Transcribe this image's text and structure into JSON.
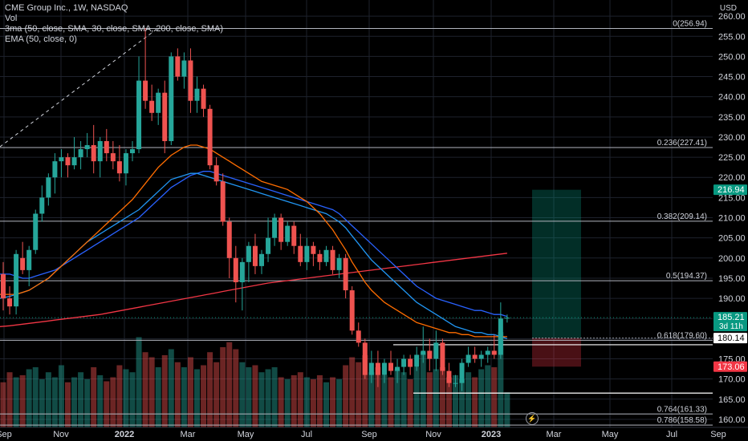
{
  "legend": {
    "symbol": "CME Group Inc., 1W, NASDAQ",
    "vol": "Vol",
    "ma": "3ma (50, close, SMA, 30, close, SMA, 200, close, SMA)",
    "ema": "EMA (50, close, 0)"
  },
  "currency": "USD",
  "colors": {
    "up": "#26a69a",
    "down": "#ef5350",
    "sma50": "#2962ff",
    "sma30": "#2196f3",
    "sma200": "#f23645",
    "ema50": "#ff6d00",
    "grid": "#1e222d",
    "text": "#d1d4dc"
  },
  "chart_data": {
    "type": "candlestick",
    "ylim": [
      158,
      264
    ],
    "y_ticks": [
      160,
      165,
      170,
      175,
      180,
      185,
      190,
      195,
      200,
      205,
      210,
      215,
      220,
      225,
      230,
      235,
      240,
      245,
      250,
      255,
      260
    ],
    "x_ticks": [
      "Sep",
      "Nov",
      "2022",
      "Mar",
      "May",
      "Jul",
      "Sep",
      "Nov",
      "2023",
      "Mar",
      "May",
      "Jul",
      "Sep"
    ],
    "candles": [
      {
        "o": 196,
        "h": 199,
        "l": 187,
        "c": 190
      },
      {
        "o": 190,
        "h": 193,
        "l": 186,
        "c": 188
      },
      {
        "o": 188,
        "h": 202,
        "l": 186,
        "c": 201
      },
      {
        "o": 200,
        "h": 204,
        "l": 196,
        "c": 197
      },
      {
        "o": 197,
        "h": 203,
        "l": 193,
        "c": 202
      },
      {
        "o": 202,
        "h": 212,
        "l": 201,
        "c": 211
      },
      {
        "o": 211,
        "h": 218,
        "l": 209,
        "c": 215
      },
      {
        "o": 215,
        "h": 221,
        "l": 213,
        "c": 220
      },
      {
        "o": 220,
        "h": 226,
        "l": 216,
        "c": 224
      },
      {
        "o": 224,
        "h": 227,
        "l": 220,
        "c": 225
      },
      {
        "o": 225,
        "h": 226,
        "l": 220,
        "c": 223
      },
      {
        "o": 223,
        "h": 230,
        "l": 222,
        "c": 225
      },
      {
        "o": 225,
        "h": 229,
        "l": 222,
        "c": 227
      },
      {
        "o": 227,
        "h": 231,
        "l": 225,
        "c": 228
      },
      {
        "o": 228,
        "h": 233,
        "l": 221,
        "c": 224
      },
      {
        "o": 224,
        "h": 230,
        "l": 220,
        "c": 229
      },
      {
        "o": 229,
        "h": 232,
        "l": 224,
        "c": 226
      },
      {
        "o": 226,
        "h": 229,
        "l": 222,
        "c": 224
      },
      {
        "o": 224,
        "h": 228,
        "l": 219,
        "c": 221
      },
      {
        "o": 221,
        "h": 227,
        "l": 218,
        "c": 226
      },
      {
        "o": 226,
        "h": 229,
        "l": 224,
        "c": 227
      },
      {
        "o": 227,
        "h": 250,
        "l": 226,
        "c": 244
      },
      {
        "o": 244,
        "h": 257,
        "l": 237,
        "c": 239
      },
      {
        "o": 239,
        "h": 243,
        "l": 234,
        "c": 236
      },
      {
        "o": 236,
        "h": 242,
        "l": 233,
        "c": 241
      },
      {
        "o": 241,
        "h": 244,
        "l": 226,
        "c": 229
      },
      {
        "o": 229,
        "h": 251,
        "l": 228,
        "c": 250
      },
      {
        "o": 250,
        "h": 252,
        "l": 244,
        "c": 245
      },
      {
        "o": 245,
        "h": 251,
        "l": 242,
        "c": 249
      },
      {
        "o": 249,
        "h": 252,
        "l": 236,
        "c": 239
      },
      {
        "o": 239,
        "h": 245,
        "l": 236,
        "c": 242
      },
      {
        "o": 242,
        "h": 243,
        "l": 235,
        "c": 237
      },
      {
        "o": 237,
        "h": 238,
        "l": 222,
        "c": 223
      },
      {
        "o": 223,
        "h": 225,
        "l": 218,
        "c": 219
      },
      {
        "o": 219,
        "h": 221,
        "l": 208,
        "c": 209
      },
      {
        "o": 209,
        "h": 210,
        "l": 195,
        "c": 200
      },
      {
        "o": 200,
        "h": 203,
        "l": 189,
        "c": 194
      },
      {
        "o": 194,
        "h": 200,
        "l": 187,
        "c": 199
      },
      {
        "o": 199,
        "h": 204,
        "l": 194,
        "c": 203
      },
      {
        "o": 203,
        "h": 206,
        "l": 196,
        "c": 198
      },
      {
        "o": 198,
        "h": 202,
        "l": 196,
        "c": 201
      },
      {
        "o": 201,
        "h": 210,
        "l": 199,
        "c": 205
      },
      {
        "o": 205,
        "h": 211,
        "l": 203,
        "c": 210
      },
      {
        "o": 210,
        "h": 211,
        "l": 202,
        "c": 204
      },
      {
        "o": 204,
        "h": 209,
        "l": 203,
        "c": 208
      },
      {
        "o": 208,
        "h": 209,
        "l": 201,
        "c": 203
      },
      {
        "o": 203,
        "h": 206,
        "l": 198,
        "c": 199
      },
      {
        "o": 199,
        "h": 205,
        "l": 197,
        "c": 203
      },
      {
        "o": 203,
        "h": 204,
        "l": 198,
        "c": 201
      },
      {
        "o": 201,
        "h": 202,
        "l": 197,
        "c": 199
      },
      {
        "o": 199,
        "h": 203,
        "l": 198,
        "c": 202
      },
      {
        "o": 202,
        "h": 203,
        "l": 196,
        "c": 197
      },
      {
        "o": 197,
        "h": 201,
        "l": 195,
        "c": 200
      },
      {
        "o": 200,
        "h": 201,
        "l": 190,
        "c": 192
      },
      {
        "o": 192,
        "h": 193,
        "l": 181,
        "c": 182
      },
      {
        "o": 182,
        "h": 184,
        "l": 178,
        "c": 179
      },
      {
        "o": 179,
        "h": 180,
        "l": 170,
        "c": 171
      },
      {
        "o": 171,
        "h": 177,
        "l": 169,
        "c": 174
      },
      {
        "o": 174,
        "h": 177,
        "l": 168,
        "c": 171
      },
      {
        "o": 171,
        "h": 175,
        "l": 169,
        "c": 174
      },
      {
        "o": 174,
        "h": 177,
        "l": 171,
        "c": 172
      },
      {
        "o": 172,
        "h": 175,
        "l": 169,
        "c": 173
      },
      {
        "o": 173,
        "h": 176,
        "l": 171,
        "c": 175
      },
      {
        "o": 175,
        "h": 176,
        "l": 171,
        "c": 173
      },
      {
        "o": 173,
        "h": 178,
        "l": 172,
        "c": 176
      },
      {
        "o": 176,
        "h": 183,
        "l": 174,
        "c": 177
      },
      {
        "o": 177,
        "h": 180,
        "l": 172,
        "c": 175
      },
      {
        "o": 175,
        "h": 182,
        "l": 172,
        "c": 179
      },
      {
        "o": 179,
        "h": 180,
        "l": 171,
        "c": 172
      },
      {
        "o": 172,
        "h": 174,
        "l": 168,
        "c": 169
      },
      {
        "o": 169,
        "h": 171,
        "l": 168,
        "c": 169
      },
      {
        "o": 169,
        "h": 175,
        "l": 167,
        "c": 174
      },
      {
        "o": 174,
        "h": 178,
        "l": 173,
        "c": 176
      },
      {
        "o": 176,
        "h": 178,
        "l": 174,
        "c": 175
      },
      {
        "o": 175,
        "h": 177,
        "l": 173,
        "c": 176
      },
      {
        "o": 176,
        "h": 178,
        "l": 174,
        "c": 177
      },
      {
        "o": 177,
        "h": 181,
        "l": 175,
        "c": 176
      },
      {
        "o": 176,
        "h": 189,
        "l": 175,
        "c": 185
      },
      {
        "o": 185,
        "h": 186,
        "l": 184,
        "c": 185.21
      }
    ],
    "volume": [
      0.45,
      0.55,
      0.5,
      0.52,
      0.58,
      0.6,
      0.48,
      0.55,
      0.5,
      0.62,
      0.45,
      0.5,
      0.55,
      0.48,
      0.6,
      0.52,
      0.46,
      0.5,
      0.62,
      0.58,
      0.55,
      0.9,
      0.75,
      0.7,
      0.6,
      0.72,
      0.78,
      0.65,
      0.6,
      0.7,
      0.58,
      0.62,
      0.75,
      0.65,
      0.8,
      0.85,
      0.78,
      0.65,
      0.6,
      0.62,
      0.55,
      0.58,
      0.6,
      0.5,
      0.48,
      0.52,
      0.55,
      0.5,
      0.48,
      0.52,
      0.45,
      0.5,
      0.48,
      0.62,
      0.7,
      0.65,
      0.72,
      0.55,
      0.6,
      0.52,
      0.5,
      0.58,
      0.55,
      0.48,
      0.6,
      0.75,
      0.55,
      0.58,
      0.6,
      0.5,
      0.52,
      0.48,
      0.55,
      0.5,
      0.58,
      0.62,
      0.6,
      0.95,
      0.35
    ],
    "sma30_label": "3ma",
    "sma50_label": "3ma",
    "ema_label": "EMA",
    "sma30": [
      190,
      190.5,
      191,
      191.5,
      192,
      193,
      194,
      195,
      196.5,
      198,
      199.5,
      201,
      202.5,
      204,
      205,
      206,
      207,
      208,
      209,
      210,
      211,
      212,
      213.5,
      215,
      216.5,
      218,
      219.5,
      220,
      220.5,
      221,
      221,
      220.5,
      220,
      219.5,
      219,
      218.5,
      218,
      217.5,
      217,
      216.5,
      216,
      215.5,
      215,
      214.5,
      214,
      213.5,
      213,
      212.5,
      212,
      211.5,
      211,
      210,
      209,
      207.5,
      205.5,
      203.5,
      201.5,
      199.5,
      198,
      196.5,
      195,
      193.5,
      192,
      190.5,
      189,
      188,
      187,
      186,
      185,
      184,
      183,
      182.5,
      182,
      181.5,
      181.5,
      181,
      181,
      180.5,
      180
    ],
    "sma50": [
      196,
      196,
      195.5,
      195,
      195,
      195.5,
      196,
      196.5,
      197,
      198,
      199,
      200,
      201,
      202,
      203,
      204,
      205,
      206,
      207,
      208,
      209,
      210,
      211.5,
      213,
      214.5,
      216,
      217.5,
      218.5,
      219.5,
      220.5,
      221,
      221.5,
      221.5,
      221,
      220.5,
      220,
      219.5,
      219,
      218.5,
      218,
      217.5,
      217,
      216.5,
      216,
      215.5,
      215,
      214.5,
      214,
      213.5,
      213,
      212.5,
      212,
      211,
      209.5,
      208,
      206.5,
      205,
      203.5,
      202,
      200.5,
      199,
      197.5,
      196,
      194.5,
      193,
      192,
      191,
      190,
      189.5,
      189,
      188.5,
      188,
      187.5,
      187,
      187,
      186.5,
      186,
      186,
      185.5
    ],
    "ema50": [
      191,
      191,
      191,
      191.5,
      192,
      193,
      194,
      195,
      196.5,
      198,
      199.5,
      201,
      202.5,
      204,
      205.5,
      207,
      208.5,
      210,
      211.5,
      213,
      214.5,
      216.5,
      218.5,
      220.5,
      222.5,
      224,
      225.5,
      226.5,
      227.5,
      228,
      228,
      227.5,
      227,
      226,
      225,
      224,
      223,
      222,
      221,
      220,
      219,
      218.5,
      218,
      217.5,
      217,
      216,
      215,
      214,
      212.5,
      211,
      209,
      207,
      204.5,
      202,
      199,
      196.5,
      194,
      192,
      190.5,
      189,
      188,
      187,
      186,
      185,
      184,
      183.5,
      183,
      182.5,
      182,
      181.5,
      181.5,
      181,
      181,
      180.5,
      180.5,
      180.5,
      180.5,
      180.5,
      180.5
    ],
    "sma200": [
      183,
      183.2,
      183.4,
      183.6,
      183.8,
      184,
      184.2,
      184.4,
      184.6,
      184.8,
      185,
      185.2,
      185.4,
      185.6,
      185.8,
      186,
      186.3,
      186.6,
      186.9,
      187.2,
      187.5,
      187.8,
      188.1,
      188.4,
      188.7,
      189,
      189.3,
      189.6,
      189.9,
      190.2,
      190.5,
      190.8,
      191.1,
      191.4,
      191.7,
      192,
      192.3,
      192.6,
      192.9,
      193.2,
      193.5,
      193.8,
      194,
      194.2,
      194.4,
      194.6,
      194.8,
      195,
      195.2,
      195.4,
      195.6,
      195.8,
      196,
      196.2,
      196.4,
      196.6,
      196.8,
      197,
      197.2,
      197.4,
      197.6,
      197.8,
      198,
      198.2,
      198.4,
      198.6,
      198.8,
      199,
      199.2,
      199.4,
      199.6,
      199.8,
      200,
      200.2,
      200.4,
      200.6,
      200.8,
      201,
      201.2
    ],
    "fib_levels": [
      {
        "label": "0(256.94)",
        "value": 256.94
      },
      {
        "label": "0.236(227.41)",
        "value": 227.41
      },
      {
        "label": "0.382(209.14)",
        "value": 209.14
      },
      {
        "label": "0.5(194.37)",
        "value": 194.37
      },
      {
        "label": "0.618(179.60)",
        "value": 179.6
      },
      {
        "label": "0.764(161.33)",
        "value": 161.33
      },
      {
        "label": "0.786(158.58)",
        "value": 158.58
      }
    ],
    "support_line": 166.5,
    "box_level": 178.5,
    "position": {
      "entry": 180.14,
      "target": 216.94,
      "stop": 173.06
    },
    "price_tags": [
      {
        "label": "216.94",
        "value": 216.94,
        "color": "#089981"
      },
      {
        "label": "185.21",
        "value": 185.21,
        "color": "#089981",
        "sub": "3d 11h"
      },
      {
        "label": "180.14",
        "value": 180.14,
        "color": "#ffffff"
      },
      {
        "label": "173.06",
        "value": 173.06,
        "color": "#f23645"
      }
    ]
  }
}
